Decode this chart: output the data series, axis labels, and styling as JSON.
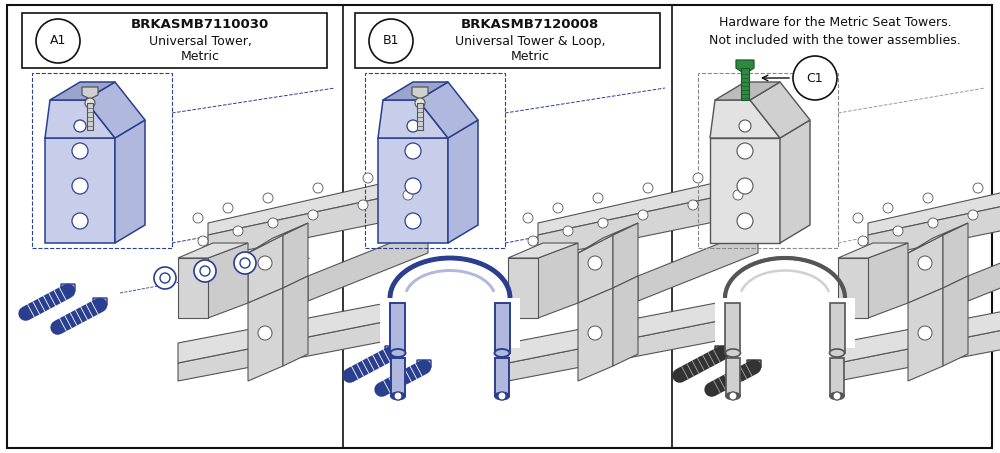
{
  "fig_width": 10.0,
  "fig_height": 4.53,
  "bg_color": "#ffffff",
  "panel1": {
    "label": "A1",
    "part_number": "BRKASMB7110030",
    "part_line1": "Universal Tower,",
    "part_line2": "Metric"
  },
  "panel2": {
    "label": "B1",
    "part_number": "BRKASMB7120008",
    "part_line1": "Universal Tower & Loop,",
    "part_line2": "Metric"
  },
  "panel3": {
    "header_line1": "Hardware for the Metric Seat Towers.",
    "header_line2": "Not included with the tower assemblies.",
    "label": "C1"
  },
  "colors": {
    "blue": "#2a3f8f",
    "blue_fill": "#c8ceea",
    "blue_fill2": "#b0b8de",
    "blue_fill3": "#9aa4cc",
    "green": "#2d8a3e",
    "green_dark": "#1a5a28",
    "gray_outline": "#555555",
    "gray_fill": "#e2e2e2",
    "gray_fill2": "#d0d0d0",
    "gray_fill3": "#bcbcbc",
    "gray_dark": "#444444",
    "frame_fill": "#e8e8e8",
    "frame_fill2": "#d5d5d5",
    "frame_fill3": "#c5c5c5",
    "black": "#111111",
    "white": "#ffffff",
    "dashed_blue": "#2a3f8f",
    "dashed_gray": "#777777"
  }
}
